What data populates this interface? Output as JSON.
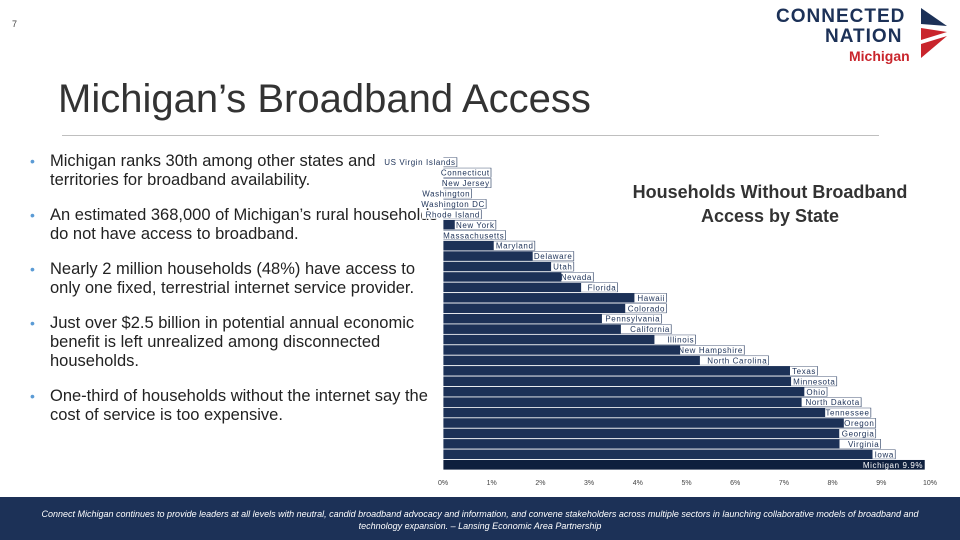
{
  "slide": {
    "number": "7"
  },
  "logo": {
    "line1": "CONNECTED",
    "line2": "NATION",
    "sub": "Michigan"
  },
  "title": "Michigan’s Broadband Access",
  "bullets": [
    "Michigan ranks 30th among other states and territories for broadband availability.",
    "An estimated 368,000 of Michigan’s rural households do not have access to broadband.",
    "Nearly 2 million households (48%) have access to only one fixed, terrestrial internet service provider.",
    "Just over $2.5 billion in potential annual economic benefit is left unrealized among disconnected households.",
    "One-third of households without the internet say the cost of service is too expensive."
  ],
  "chart_title": "Households Without Broadband Access by State",
  "chart_data": {
    "type": "bar",
    "orientation": "horizontal",
    "title": "Households Without Broadband Access by State",
    "categories": [
      "US Virgin Islands",
      "Connecticut",
      "New Jersey",
      "Washington",
      "Washington DC",
      "Rhode Island",
      "New York",
      "Massachusetts",
      "Maryland",
      "Delaware",
      "Utah",
      "Nevada",
      "Florida",
      "Hawaii",
      "Colorado",
      "Pennsylvania",
      "California",
      "Illinois",
      "New Hampshire",
      "North Carolina",
      "Texas",
      "Minnesota",
      "Ohio",
      "North Dakota",
      "Tennessee",
      "Oregon",
      "Georgia",
      "Virginia",
      "Iowa",
      "Michigan"
    ],
    "values": [
      0.3,
      1.0,
      1.0,
      0.6,
      0.9,
      0.8,
      1.1,
      1.3,
      1.9,
      2.7,
      2.7,
      3.1,
      3.6,
      4.6,
      4.6,
      4.5,
      4.7,
      5.2,
      6.2,
      6.7,
      7.7,
      8.1,
      7.9,
      8.6,
      8.8,
      8.9,
      8.9,
      9.0,
      9.3,
      9.9
    ],
    "highlight": {
      "category": "Michigan",
      "label": "Michigan 9.9%"
    },
    "xlim": [
      0,
      10
    ],
    "xticks": [
      "0%",
      "1%",
      "2%",
      "3%",
      "4%",
      "5%",
      "6%",
      "7%",
      "8%",
      "9%",
      "10%"
    ],
    "colors": {
      "bar": "#1c3157",
      "highlight": "#0e1f3d",
      "bar_border": "#ffffff"
    }
  },
  "footer": "Connect Michigan continues to provide leaders at all levels with neutral, candid broadband advocacy and information, and convene stakeholders across multiple sectors in launching collaborative models of broadband and technology expansion. – Lansing Economic Area Partnership",
  "colors": {
    "navy": "#1c3157",
    "red": "#c9252c",
    "bullet": "#5b9bd5"
  }
}
